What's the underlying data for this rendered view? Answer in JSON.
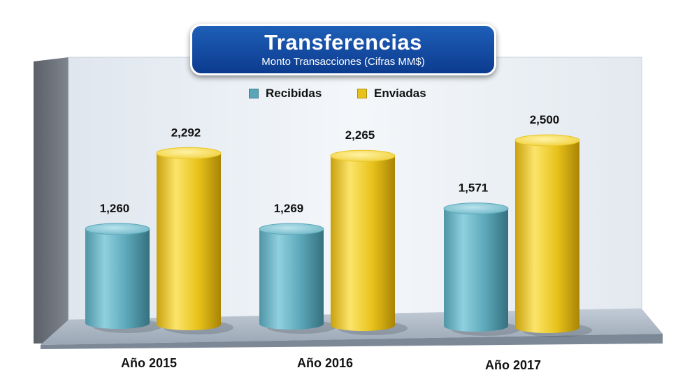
{
  "chart_data": {
    "type": "bar",
    "title": "Transferencias",
    "subtitle": "Monto Transacciones (Cifras MM$)",
    "categories": [
      "Año 2015",
      "Año 2016",
      "Año 2017"
    ],
    "series": [
      {
        "name": "Recibidas",
        "color": "#5aa6b8",
        "values": [
          1260,
          1269,
          1571
        ]
      },
      {
        "name": "Enviadas",
        "color": "#e8c21a",
        "values": [
          2292,
          2265,
          2500
        ]
      }
    ],
    "data_labels": [
      [
        "1,260",
        "1,269",
        "1,571"
      ],
      [
        "2,292",
        "2,265",
        "2,500"
      ]
    ],
    "ylim": [
      0,
      2800
    ],
    "grid": false,
    "legend_position": "top-center"
  }
}
